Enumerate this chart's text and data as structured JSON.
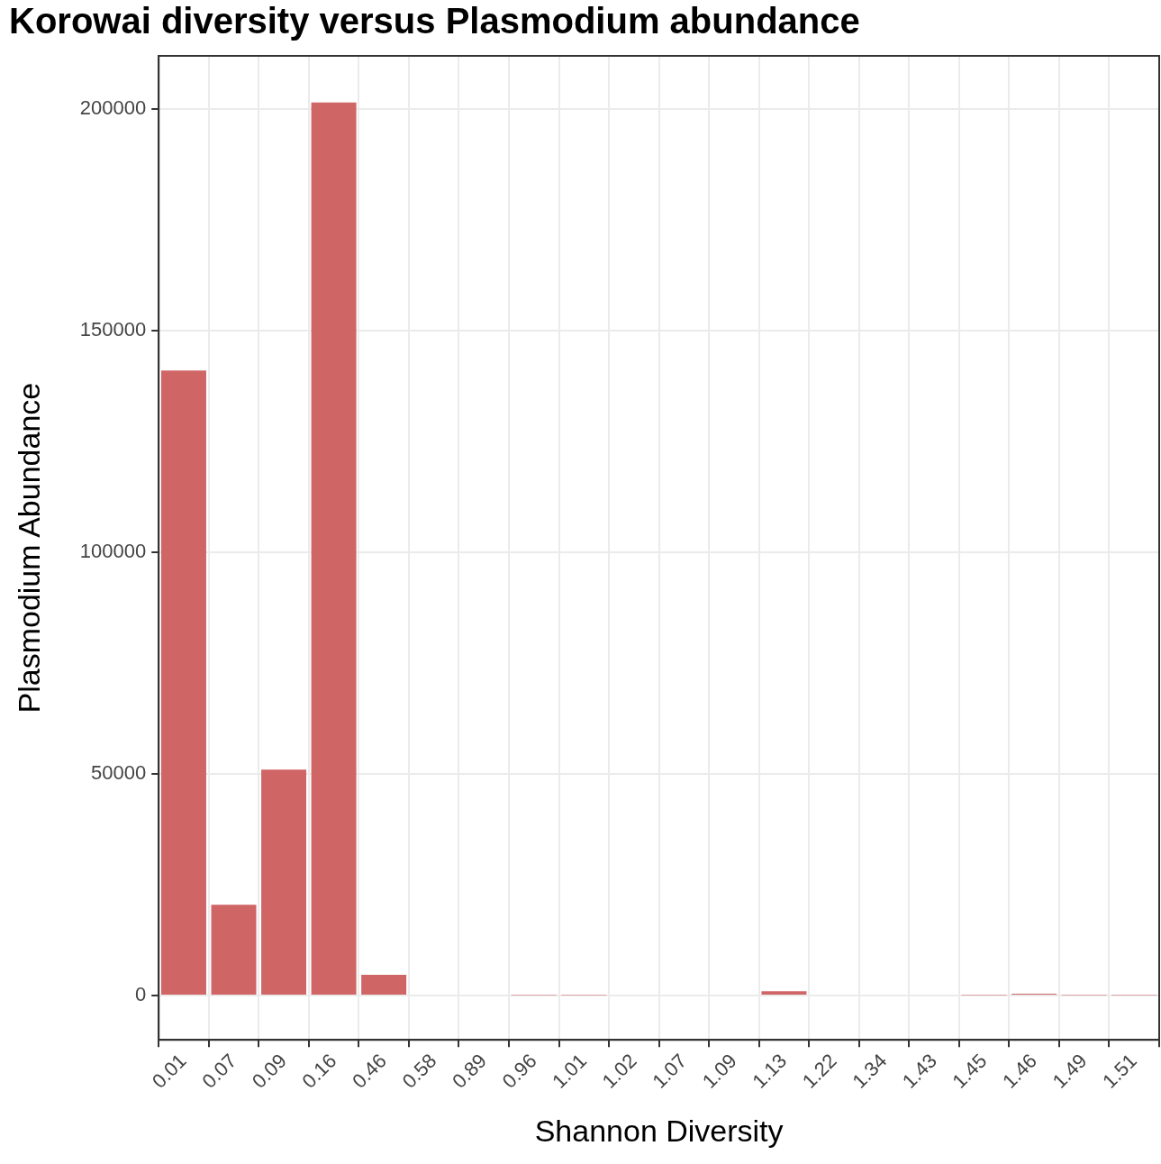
{
  "chart_data": {
    "type": "bar",
    "title": "Korowai diversity versus Plasmodium abundance",
    "xlabel": "Shannon Diversity",
    "ylabel": "Plasmodium Abundance",
    "categories": [
      "0.01",
      "0.07",
      "0.09",
      "0.16",
      "0.46",
      "0.58",
      "0.89",
      "0.96",
      "1.01",
      "1.02",
      "1.07",
      "1.09",
      "1.13",
      "1.22",
      "1.34",
      "1.43",
      "1.45",
      "1.46",
      "1.49",
      "1.51"
    ],
    "values": [
      141000,
      20500,
      51000,
      201500,
      4700,
      0,
      0,
      100,
      100,
      0,
      0,
      0,
      1000,
      0,
      0,
      0,
      100,
      400,
      100,
      100
    ],
    "color": "#d06566",
    "ylim": [
      -10000,
      212000
    ],
    "yticks": [
      0,
      50000,
      100000,
      150000,
      200000
    ],
    "grid": true,
    "legend": false
  }
}
